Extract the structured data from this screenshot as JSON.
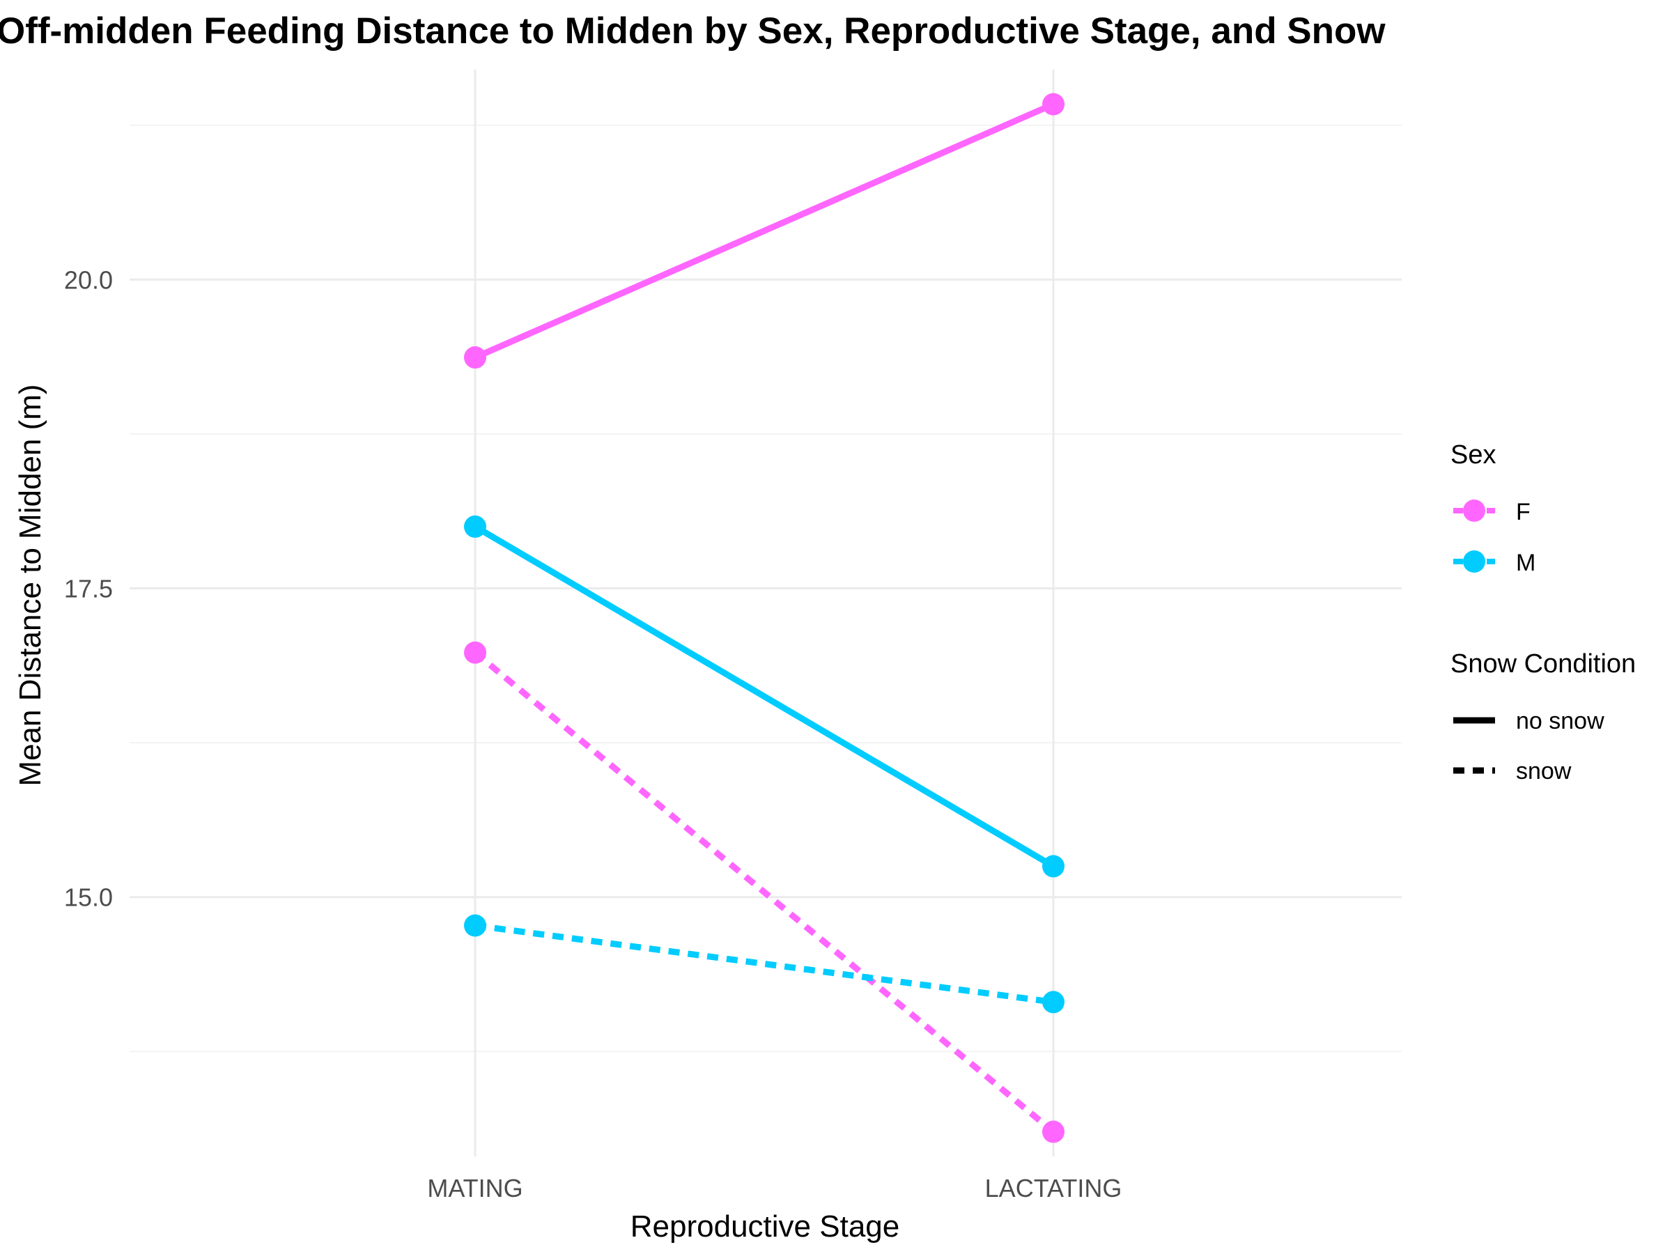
{
  "chart_data": {
    "type": "line",
    "title": "Off-midden Feeding Distance to Midden by Sex, Reproductive Stage, and Snow",
    "xlabel": "Reproductive Stage",
    "ylabel": "Mean Distance to Midden (m)",
    "categories": [
      "MATING",
      "LACTATING"
    ],
    "ylim": [
      12.9,
      21.7
    ],
    "yticks": [
      15.0,
      17.5,
      20.0
    ],
    "ytick_labels": [
      "15.0",
      "17.5",
      "20.0"
    ],
    "grid": true,
    "legend_position": "right",
    "legends": [
      {
        "title": "Sex",
        "entries": [
          {
            "label": "F",
            "color": "#FF66FF"
          },
          {
            "label": "M",
            "color": "#00CCFF"
          }
        ]
      },
      {
        "title": "Snow Condition",
        "entries": [
          {
            "label": "no snow",
            "linetype": "solid"
          },
          {
            "label": "snow",
            "linetype": "dashed"
          }
        ]
      }
    ],
    "series": [
      {
        "sex": "F",
        "snow": "no snow",
        "color": "#FF66FF",
        "linetype": "solid",
        "values": [
          19.37,
          21.42
        ]
      },
      {
        "sex": "M",
        "snow": "no snow",
        "color": "#00CCFF",
        "linetype": "solid",
        "values": [
          18.0,
          15.25
        ]
      },
      {
        "sex": "F",
        "snow": "snow",
        "color": "#FF66FF",
        "linetype": "dashed",
        "values": [
          16.98,
          13.1
        ]
      },
      {
        "sex": "M",
        "snow": "snow",
        "color": "#00CCFF",
        "linetype": "dashed",
        "values": [
          14.77,
          14.15
        ]
      }
    ]
  }
}
